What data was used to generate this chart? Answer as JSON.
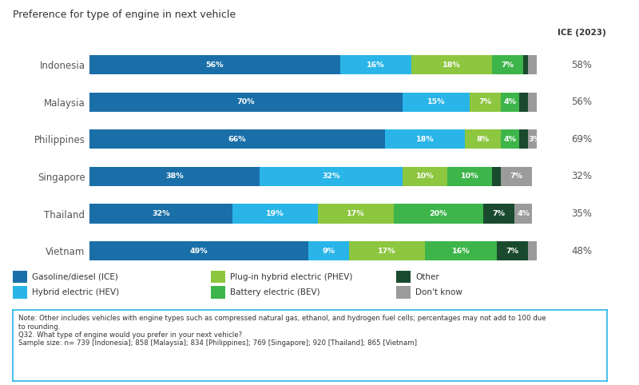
{
  "title": "Preference for type of engine in next vehicle",
  "countries": [
    "Indonesia",
    "Malaysia",
    "Philippines",
    "Singapore",
    "Thailand",
    "Vietnam"
  ],
  "ice_2023": [
    "58%",
    "56%",
    "69%",
    "32%",
    "35%",
    "48%"
  ],
  "segments": [
    "Gasoline/diesel (ICE)",
    "Hybrid electric (HEV)",
    "Plug-in hybrid electric (PHEV)",
    "Battery electric (BEV)",
    "Other",
    "Don't know"
  ],
  "colors": [
    "#1a6fa8",
    "#29b5e8",
    "#8dc63f",
    "#3db54a",
    "#1a4a2e",
    "#9b9b9b"
  ],
  "data": {
    "Indonesia": [
      56,
      16,
      18,
      7,
      1,
      2
    ],
    "Malaysia": [
      70,
      15,
      7,
      4,
      2,
      2
    ],
    "Philippines": [
      66,
      18,
      8,
      4,
      2,
      3
    ],
    "Singapore": [
      38,
      32,
      10,
      10,
      2,
      7
    ],
    "Thailand": [
      32,
      19,
      17,
      20,
      7,
      4
    ],
    "Vietnam": [
      49,
      9,
      17,
      16,
      7,
      2
    ]
  },
  "legend_labels": [
    "Gasoline/diesel (ICE)",
    "Hybrid electric (HEV)",
    "Plug-in hybrid electric (PHEV)",
    "Battery electric (BEV)",
    "Other",
    "Don't know"
  ],
  "note_text": "Note: Other includes vehicles with engine types such as compressed natural gas, ethanol, and hydrogen fuel cells; percentages may not add to 100 due\nto rounding.\nQ32. What type of engine would you prefer in your next vehicle?\nSample size: n= 739 [Indonesia]; 858 [Malaysia]; 834 [Philippines]; 769 [Singapore]; 920 [Thailand]; 865 [Vietnam]",
  "ice_label": "ICE (2023)",
  "background_color": "#ffffff",
  "bar_height": 0.52,
  "min_label_pct": 3,
  "note_border_color": "#29b5e8"
}
